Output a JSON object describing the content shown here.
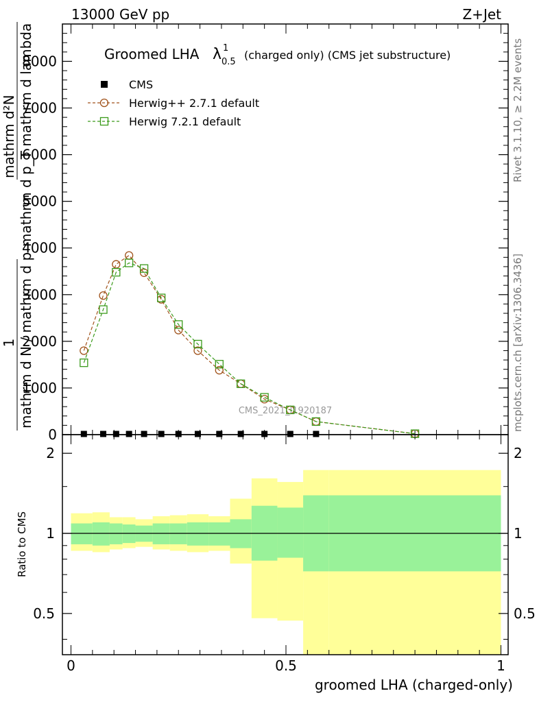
{
  "header": {
    "left": "13000 GeV pp",
    "right": "Z+Jet"
  },
  "side_labels": {
    "rivet": "Rivet 3.1.10, ≥ 2.2M events",
    "mcplots": "mcplots.cern.ch [arXiv:1306.3436]"
  },
  "title": {
    "main": "Groomed LHA",
    "lambda_sym": "λ",
    "sup": "1",
    "sub": "0.5",
    "rest": "(charged only) (CMS jet substructure)"
  },
  "watermark": "CMS_2021_I1920187",
  "top_axis": {
    "ylabel_num_a": "1",
    "ylabel_den_a": "mathrm d N / mathrm d p",
    "ylabel_num_b": "mathrm d²N",
    "ylabel_den_b": "mathrm d p_T mathrm d lambda",
    "yticks": [
      "0",
      "1000",
      "2000",
      "3000",
      "4000",
      "5000",
      "6000",
      "7000",
      "8000"
    ]
  },
  "bottom_axis": {
    "ylabel": "Ratio to CMS",
    "yticks": [
      "0.5",
      "1",
      "2"
    ],
    "xticks": [
      "0",
      "0.5",
      "1"
    ],
    "xlabel": "groomed LHA (charged-only)"
  },
  "legend": [
    {
      "label": "CMS",
      "color": "#000000",
      "marker": "filled-square"
    },
    {
      "label": "Herwig++ 2.7.1 default",
      "color": "#a0521a",
      "marker": "open-circle"
    },
    {
      "label": "Herwig 7.2.1 default",
      "color": "#3a9a1a",
      "marker": "open-square"
    }
  ],
  "chart_data": {
    "type": "line",
    "xlim": [
      0,
      1
    ],
    "ylim": [
      0,
      8800
    ],
    "ratio_ylim": [
      0.35,
      2.35
    ],
    "ratio_log": true,
    "bin_edges": [
      0,
      0.05,
      0.09,
      0.12,
      0.15,
      0.19,
      0.23,
      0.27,
      0.32,
      0.37,
      0.42,
      0.48,
      0.54,
      0.6,
      1.0
    ],
    "cms_x": [
      0.03,
      0.075,
      0.105,
      0.135,
      0.17,
      0.21,
      0.25,
      0.295,
      0.345,
      0.395,
      0.45,
      0.51,
      0.57
    ],
    "cms_y": [
      0,
      0,
      0,
      0,
      0,
      0,
      0,
      0,
      0,
      0,
      0,
      0,
      0
    ],
    "series": [
      {
        "name": "Herwig++ 2.7.1 default",
        "x": [
          0.03,
          0.075,
          0.105,
          0.135,
          0.17,
          0.21,
          0.25,
          0.295,
          0.345,
          0.395,
          0.45,
          0.51,
          0.57,
          0.8
        ],
        "y": [
          1800,
          2980,
          3650,
          3840,
          3470,
          2900,
          2240,
          1800,
          1380,
          1090,
          760,
          530,
          280,
          20
        ],
        "color": "#a0521a",
        "marker": "circle"
      },
      {
        "name": "Herwig 7.2.1 default",
        "x": [
          0.03,
          0.075,
          0.105,
          0.135,
          0.17,
          0.21,
          0.25,
          0.295,
          0.345,
          0.395,
          0.45,
          0.51,
          0.57,
          0.8
        ],
        "y": [
          1540,
          2680,
          3480,
          3680,
          3560,
          2930,
          2360,
          1940,
          1510,
          1090,
          800,
          530,
          280,
          20
        ],
        "color": "#3a9a1a",
        "marker": "square"
      }
    ],
    "ratio_band_inner": [
      [
        0.91,
        1.09
      ],
      [
        0.9,
        1.1
      ],
      [
        0.91,
        1.09
      ],
      [
        0.92,
        1.08
      ],
      [
        0.93,
        1.07
      ],
      [
        0.91,
        1.09
      ],
      [
        0.91,
        1.09
      ],
      [
        0.9,
        1.1
      ],
      [
        0.9,
        1.1
      ],
      [
        0.88,
        1.13
      ],
      [
        0.79,
        1.27
      ],
      [
        0.81,
        1.25
      ],
      [
        0.72,
        1.39
      ],
      [
        0.72,
        1.39
      ]
    ],
    "ratio_band_outer": [
      [
        0.86,
        1.19
      ],
      [
        0.85,
        1.2
      ],
      [
        0.87,
        1.15
      ],
      [
        0.88,
        1.15
      ],
      [
        0.89,
        1.13
      ],
      [
        0.87,
        1.16
      ],
      [
        0.86,
        1.17
      ],
      [
        0.85,
        1.18
      ],
      [
        0.86,
        1.16
      ],
      [
        0.77,
        1.35
      ],
      [
        0.48,
        1.61
      ],
      [
        0.47,
        1.56
      ],
      [
        0.3,
        1.73
      ],
      [
        0.3,
        1.73
      ]
    ],
    "colors": {
      "band_inner": "#99f299",
      "band_outer": "#ffff99"
    }
  }
}
